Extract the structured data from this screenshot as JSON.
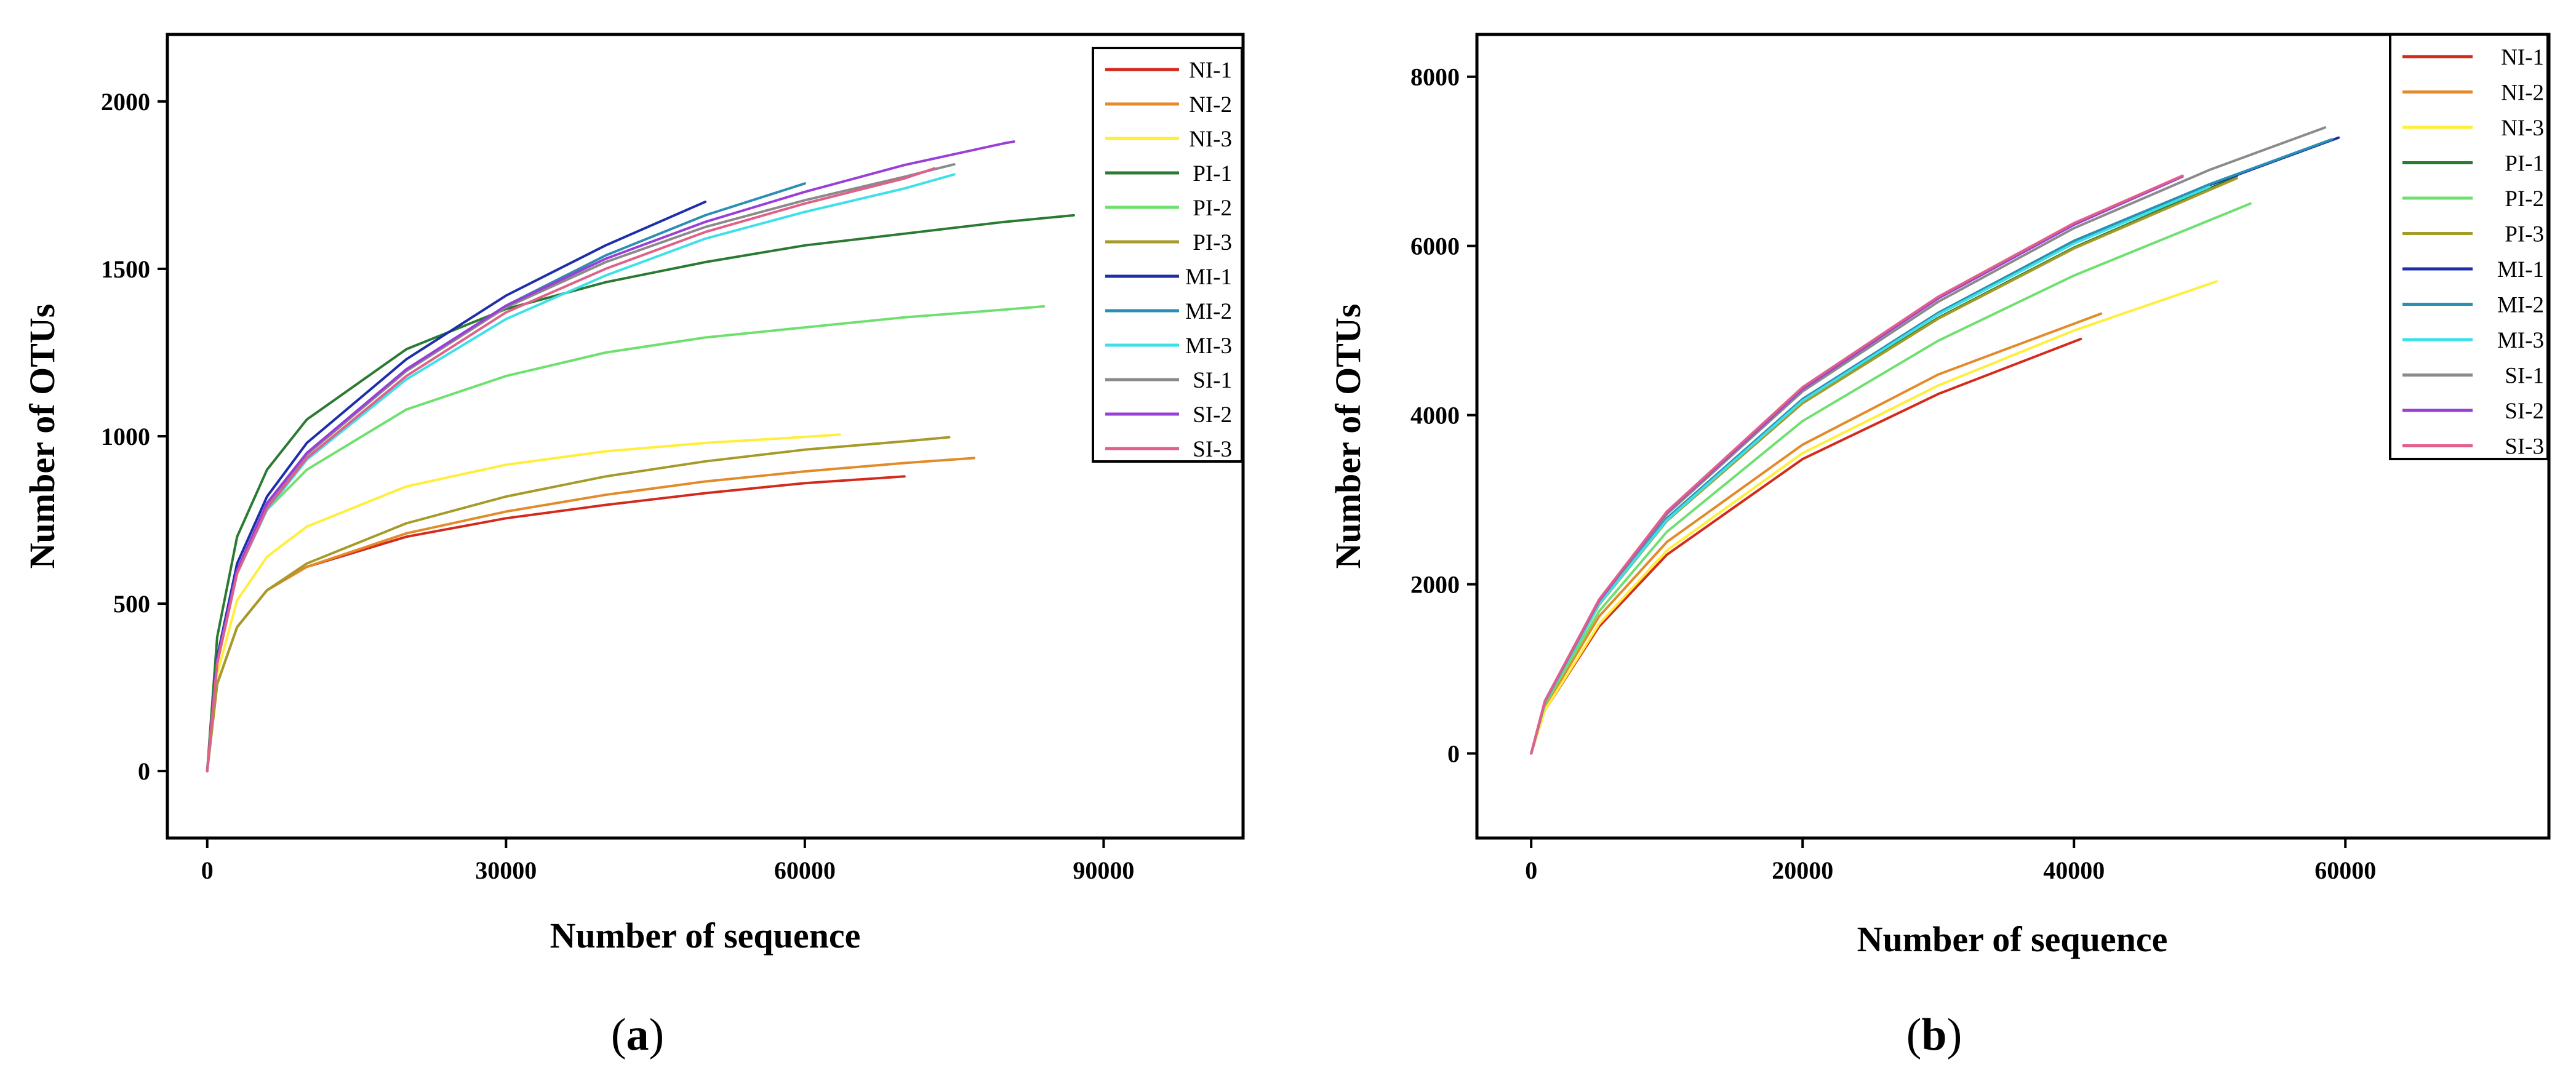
{
  "chart_data": [
    {
      "type": "line",
      "panel_label": "(a)",
      "caption_parts": [
        "(",
        "a",
        ")"
      ],
      "xlabel": "Number of sequence",
      "ylabel": "Number of OTUs",
      "xlim": [
        -4000,
        104000
      ],
      "ylim": [
        -200,
        2200
      ],
      "xticks": [
        0,
        30000,
        60000,
        90000
      ],
      "yticks": [
        0,
        500,
        1000,
        1500,
        2000
      ],
      "legend_position": "top-right",
      "series": [
        {
          "name": "NI-1",
          "color": "#d42a1c",
          "x": [
            0,
            1000,
            3000,
            6000,
            10000,
            20000,
            30000,
            40000,
            50000,
            60000,
            70000
          ],
          "y": [
            0,
            260,
            430,
            540,
            610,
            700,
            755,
            795,
            830,
            860,
            880
          ]
        },
        {
          "name": "NI-2",
          "color": "#e38a2a",
          "x": [
            0,
            1000,
            3000,
            6000,
            10000,
            20000,
            30000,
            40000,
            50000,
            60000,
            70000,
            77000
          ],
          "y": [
            0,
            260,
            430,
            540,
            610,
            710,
            775,
            825,
            865,
            895,
            920,
            935
          ]
        },
        {
          "name": "NI-3",
          "color": "#ffee3a",
          "x": [
            0,
            1000,
            3000,
            6000,
            10000,
            20000,
            30000,
            40000,
            50000,
            60000,
            63500
          ],
          "y": [
            0,
            290,
            510,
            640,
            730,
            850,
            915,
            955,
            980,
            998,
            1005
          ]
        },
        {
          "name": "PI-1",
          "color": "#2a7a32",
          "x": [
            0,
            1000,
            3000,
            6000,
            10000,
            20000,
            30000,
            40000,
            50000,
            60000,
            70000,
            80000,
            87000
          ],
          "y": [
            0,
            400,
            700,
            900,
            1050,
            1260,
            1380,
            1460,
            1520,
            1570,
            1605,
            1640,
            1660
          ]
        },
        {
          "name": "PI-2",
          "color": "#6fe06f",
          "x": [
            0,
            1000,
            3000,
            6000,
            10000,
            20000,
            30000,
            40000,
            50000,
            60000,
            70000,
            80000,
            84000
          ],
          "y": [
            0,
            330,
            600,
            780,
            900,
            1080,
            1180,
            1250,
            1295,
            1325,
            1355,
            1378,
            1388
          ]
        },
        {
          "name": "PI-3",
          "color": "#a69a28",
          "x": [
            0,
            1000,
            3000,
            6000,
            10000,
            20000,
            30000,
            40000,
            50000,
            60000,
            70000,
            74500
          ],
          "y": [
            0,
            260,
            430,
            540,
            620,
            740,
            820,
            880,
            925,
            960,
            985,
            997
          ]
        },
        {
          "name": "MI-1",
          "color": "#1c2eaa",
          "x": [
            0,
            1000,
            3000,
            6000,
            10000,
            20000,
            30000,
            40000,
            50000
          ],
          "y": [
            0,
            340,
            620,
            820,
            980,
            1230,
            1420,
            1570,
            1700
          ]
        },
        {
          "name": "MI-2",
          "color": "#2a8fb2",
          "x": [
            0,
            1000,
            3000,
            6000,
            10000,
            20000,
            30000,
            40000,
            50000,
            60000
          ],
          "y": [
            0,
            330,
            600,
            800,
            950,
            1200,
            1390,
            1540,
            1660,
            1755
          ]
        },
        {
          "name": "MI-3",
          "color": "#3ee0e8",
          "x": [
            0,
            1000,
            3000,
            6000,
            10000,
            20000,
            30000,
            40000,
            50000,
            60000,
            70000,
            75000
          ],
          "y": [
            0,
            320,
            590,
            780,
            930,
            1170,
            1350,
            1480,
            1590,
            1670,
            1740,
            1782
          ]
        },
        {
          "name": "SI-1",
          "color": "#8a8a8a",
          "x": [
            0,
            1000,
            3000,
            6000,
            10000,
            20000,
            30000,
            40000,
            50000,
            60000,
            70000,
            75000
          ],
          "y": [
            0,
            330,
            600,
            795,
            945,
            1195,
            1385,
            1520,
            1625,
            1705,
            1775,
            1812
          ]
        },
        {
          "name": "SI-2",
          "color": "#9a3ed8",
          "x": [
            0,
            1000,
            3000,
            6000,
            10000,
            20000,
            30000,
            40000,
            50000,
            60000,
            70000,
            80000,
            81000
          ],
          "y": [
            0,
            330,
            600,
            800,
            950,
            1200,
            1390,
            1530,
            1640,
            1730,
            1810,
            1875,
            1880
          ]
        },
        {
          "name": "SI-3",
          "color": "#e0608a",
          "x": [
            0,
            1000,
            3000,
            6000,
            10000,
            20000,
            30000,
            40000,
            50000,
            60000,
            70000,
            73000
          ],
          "y": [
            0,
            320,
            590,
            785,
            935,
            1180,
            1370,
            1500,
            1610,
            1695,
            1770,
            1800
          ]
        }
      ]
    },
    {
      "type": "line",
      "panel_label": "(b)",
      "caption_parts": [
        "(",
        "b",
        ")"
      ],
      "xlabel": "Number of sequence",
      "ylabel": "Number of OTUs",
      "xlim": [
        -4000,
        75000
      ],
      "ylim": [
        -1000,
        8500
      ],
      "xticks": [
        0,
        20000,
        40000,
        60000
      ],
      "yticks": [
        0,
        2000,
        4000,
        6000,
        8000
      ],
      "legend_position": "top-right",
      "series": [
        {
          "name": "NI-1",
          "color": "#d42a1c",
          "x": [
            0,
            1000,
            5000,
            10000,
            20000,
            30000,
            40500
          ],
          "y": [
            0,
            510,
            1500,
            2350,
            3480,
            4250,
            4900
          ]
        },
        {
          "name": "NI-2",
          "color": "#e38a2a",
          "x": [
            0,
            1000,
            5000,
            10000,
            20000,
            30000,
            42000
          ],
          "y": [
            0,
            550,
            1620,
            2500,
            3650,
            4480,
            5200
          ]
        },
        {
          "name": "NI-3",
          "color": "#ffee3a",
          "x": [
            0,
            1000,
            5000,
            10000,
            20000,
            30000,
            40000,
            50500
          ],
          "y": [
            0,
            510,
            1530,
            2400,
            3550,
            4350,
            5000,
            5580
          ]
        },
        {
          "name": "PI-1",
          "color": "#2a7a32",
          "x": [
            0,
            1000,
            5000,
            10000,
            20000,
            30000,
            40000,
            52000
          ],
          "y": [
            0,
            600,
            1760,
            2750,
            4150,
            5150,
            5980,
            6820
          ]
        },
        {
          "name": "PI-2",
          "color": "#6fe06f",
          "x": [
            0,
            1000,
            5000,
            10000,
            20000,
            30000,
            40000,
            53000
          ],
          "y": [
            0,
            580,
            1680,
            2620,
            3930,
            4880,
            5650,
            6500
          ]
        },
        {
          "name": "PI-3",
          "color": "#a69a28",
          "x": [
            0,
            1000,
            5000,
            10000,
            20000,
            30000,
            40000,
            52000
          ],
          "y": [
            0,
            600,
            1760,
            2750,
            4140,
            5140,
            5970,
            6800
          ]
        },
        {
          "name": "MI-1",
          "color": "#1c2eaa",
          "x": [
            0,
            1000,
            5000,
            10000,
            20000,
            30000,
            40000,
            50000,
            59500
          ],
          "y": [
            0,
            600,
            1770,
            2770,
            4180,
            5200,
            6050,
            6720,
            7280
          ]
        },
        {
          "name": "MI-2",
          "color": "#2a8fb2",
          "x": [
            0,
            1000,
            5000,
            10000,
            20000,
            30000,
            40000,
            50000,
            59000
          ],
          "y": [
            0,
            600,
            1775,
            2780,
            4190,
            5210,
            6060,
            6730,
            7260
          ]
        },
        {
          "name": "MI-3",
          "color": "#3ee0e8",
          "x": [
            0,
            1000,
            5000,
            10000,
            20000,
            30000,
            40000,
            50000
          ],
          "y": [
            0,
            600,
            1765,
            2760,
            4170,
            5190,
            6030,
            6700
          ]
        },
        {
          "name": "SI-1",
          "color": "#8a8a8a",
          "x": [
            0,
            1000,
            5000,
            10000,
            20000,
            30000,
            40000,
            50000,
            58500
          ],
          "y": [
            0,
            610,
            1800,
            2830,
            4280,
            5340,
            6210,
            6900,
            7400
          ]
        },
        {
          "name": "SI-2",
          "color": "#9a3ed8",
          "x": [
            0,
            1000,
            5000,
            10000,
            20000,
            30000,
            40000,
            48000
          ],
          "y": [
            0,
            615,
            1810,
            2850,
            4310,
            5380,
            6250,
            6820
          ]
        },
        {
          "name": "SI-3",
          "color": "#e0608a",
          "x": [
            0,
            1000,
            5000,
            10000,
            20000,
            30000,
            40000,
            48000
          ],
          "y": [
            0,
            620,
            1820,
            2860,
            4330,
            5400,
            6270,
            6830
          ]
        }
      ]
    }
  ]
}
